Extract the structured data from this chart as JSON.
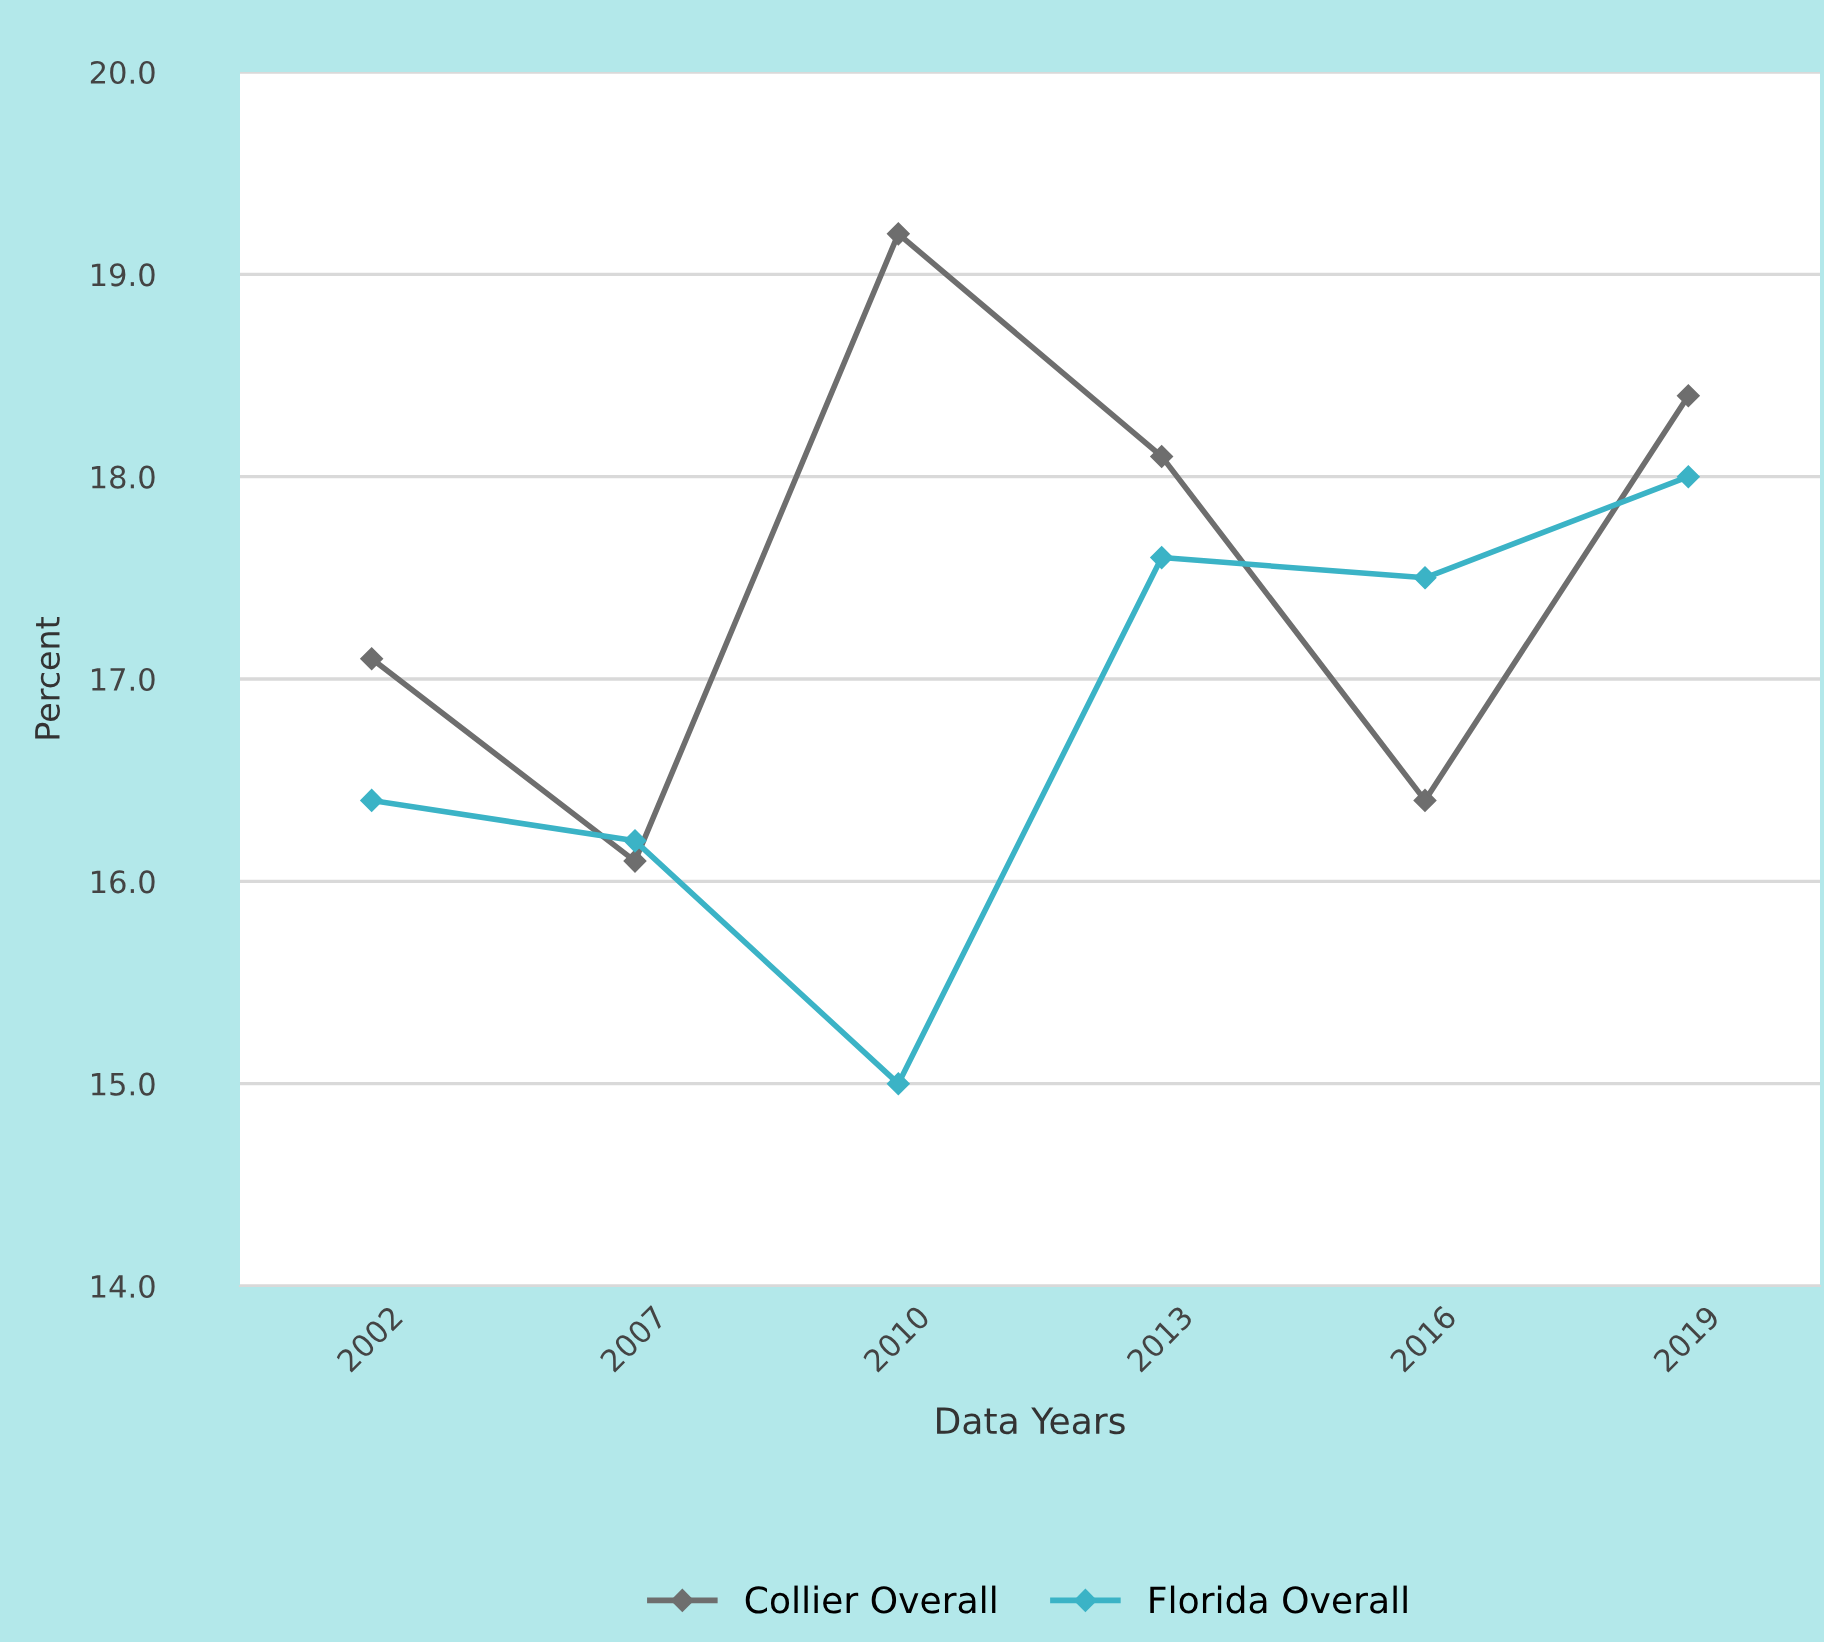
{
  "chart_data": {
    "type": "line",
    "xlabel": "Data Years",
    "ylabel": "Percent",
    "categories": [
      "2002",
      "2007",
      "2010",
      "2013",
      "2016",
      "2019"
    ],
    "series": [
      {
        "name": "Collier Overall",
        "color": "#6e6e6e",
        "values": [
          17.1,
          16.1,
          19.2,
          18.1,
          16.4,
          18.4
        ]
      },
      {
        "name": "Florida Overall",
        "color": "#3bb3c6",
        "values": [
          16.4,
          16.2,
          15.0,
          17.6,
          17.5,
          18.0
        ]
      }
    ],
    "ylim": [
      14,
      20
    ],
    "yticks": [
      {
        "value": 14,
        "label": "14.0"
      },
      {
        "value": 15,
        "label": "15.0"
      },
      {
        "value": 16,
        "label": "16.0"
      },
      {
        "value": 17,
        "label": "17.0"
      },
      {
        "value": 18,
        "label": "18.0"
      },
      {
        "value": 19,
        "label": "19.0"
      },
      {
        "value": 20,
        "label": "20.0"
      }
    ],
    "grid": "y",
    "legend": "bottom",
    "marker": "diamond",
    "line_style": "solid"
  }
}
